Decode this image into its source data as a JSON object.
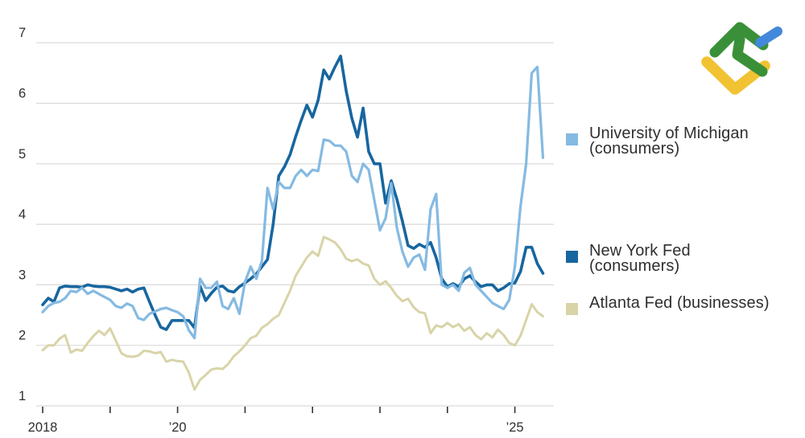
{
  "page": {
    "background": "#ffffff"
  },
  "logo": {
    "name": "litefinance-logo",
    "colors": {
      "green": "#3A9038",
      "blue": "#4289DB",
      "yellow": "#F1C232"
    }
  },
  "legend": {
    "items": [
      {
        "id": "university-of-michigan",
        "line1": "University of Michigan",
        "line2": "(consumers)",
        "color": "#85BAE2"
      },
      {
        "id": "new-york-fed",
        "line1": "New York Fed",
        "line2": "(consumers)",
        "color": "#17669F"
      },
      {
        "id": "atlanta-fed",
        "line1": "Atlanta Fed (businesses)",
        "line2": "",
        "color": "#D8D4A8"
      }
    ]
  },
  "chart_data": {
    "type": "line",
    "x_start": "2018-01",
    "frequency": "monthly",
    "ylim": [
      1,
      7
    ],
    "grid": true,
    "legend_position": "right",
    "colors": {
      "grid": "#D9D9D9",
      "axis_text": "#2F2F2F",
      "tick": "#333333"
    },
    "y_ticks": [
      1,
      2,
      3,
      4,
      5,
      6,
      7
    ],
    "x_ticks": [
      {
        "year": 2018,
        "label": "2018"
      },
      {
        "year": 2019,
        "label": ""
      },
      {
        "year": 2020,
        "label": "’20"
      },
      {
        "year": 2021,
        "label": ""
      },
      {
        "year": 2022,
        "label": ""
      },
      {
        "year": 2023,
        "label": ""
      },
      {
        "year": 2024,
        "label": ""
      },
      {
        "year": 2025,
        "label": "’25"
      }
    ],
    "series": [
      {
        "name": "University of Michigan (consumers)",
        "color": "#85BAE2",
        "values": [
          2.55,
          2.65,
          2.7,
          2.72,
          2.78,
          2.9,
          2.88,
          2.95,
          2.85,
          2.9,
          2.85,
          2.8,
          2.75,
          2.65,
          2.62,
          2.69,
          2.65,
          2.45,
          2.42,
          2.52,
          2.56,
          2.6,
          2.62,
          2.58,
          2.55,
          2.48,
          2.25,
          2.12,
          3.1,
          2.95,
          2.95,
          3.05,
          2.65,
          2.6,
          2.78,
          2.52,
          3.05,
          3.3,
          3.1,
          3.4,
          4.6,
          4.25,
          4.7,
          4.6,
          4.6,
          4.8,
          4.9,
          4.8,
          4.9,
          4.88,
          5.4,
          5.38,
          5.3,
          5.3,
          5.2,
          4.8,
          4.7,
          5.0,
          4.9,
          4.4,
          3.9,
          4.1,
          4.68,
          3.95,
          3.55,
          3.3,
          3.45,
          3.5,
          3.25,
          4.25,
          4.5,
          3.0,
          2.95,
          3.0,
          2.9,
          3.2,
          3.28,
          3.0,
          2.9,
          2.8,
          2.7,
          2.65,
          2.6,
          2.75,
          3.3,
          4.3,
          5.0,
          6.5,
          6.6,
          5.1
        ]
      },
      {
        "name": "New York Fed (consumers)",
        "color": "#17669F",
        "values": [
          2.67,
          2.78,
          2.72,
          2.95,
          2.98,
          2.97,
          2.97,
          2.96,
          3.0,
          2.98,
          2.97,
          2.97,
          2.96,
          2.93,
          2.9,
          2.93,
          2.88,
          2.93,
          2.95,
          2.72,
          2.5,
          2.3,
          2.26,
          2.41,
          2.41,
          2.41,
          2.41,
          2.29,
          2.98,
          2.74,
          2.86,
          2.96,
          2.98,
          2.9,
          2.88,
          2.97,
          3.03,
          3.1,
          3.18,
          3.3,
          3.42,
          4.0,
          4.8,
          4.95,
          5.15,
          5.45,
          5.72,
          5.97,
          5.77,
          6.05,
          6.55,
          6.4,
          6.6,
          6.78,
          6.2,
          5.75,
          5.44,
          5.92,
          5.2,
          5.0,
          5.0,
          4.35,
          4.72,
          4.42,
          4.05,
          3.65,
          3.6,
          3.67,
          3.62,
          3.7,
          3.45,
          3.1,
          2.97,
          3.02,
          2.97,
          3.1,
          3.15,
          3.05,
          2.97,
          3.0,
          3.0,
          2.9,
          2.95,
          3.02,
          3.03,
          3.22,
          3.62,
          3.62,
          3.35,
          3.19
        ]
      },
      {
        "name": "Atlanta Fed (businesses)",
        "color": "#D8D4A8",
        "values": [
          1.92,
          2.0,
          2.0,
          2.11,
          2.17,
          1.88,
          1.93,
          1.91,
          2.04,
          2.15,
          2.24,
          2.17,
          2.28,
          2.08,
          1.87,
          1.82,
          1.81,
          1.83,
          1.91,
          1.9,
          1.87,
          1.89,
          1.73,
          1.76,
          1.74,
          1.73,
          1.55,
          1.27,
          1.43,
          1.51,
          1.6,
          1.62,
          1.61,
          1.69,
          1.82,
          1.9,
          2.0,
          2.12,
          2.16,
          2.29,
          2.35,
          2.44,
          2.5,
          2.7,
          2.9,
          3.15,
          3.3,
          3.45,
          3.55,
          3.48,
          3.79,
          3.75,
          3.7,
          3.59,
          3.43,
          3.39,
          3.42,
          3.35,
          3.32,
          3.1,
          3.0,
          3.06,
          2.95,
          2.82,
          2.73,
          2.77,
          2.63,
          2.55,
          2.53,
          2.2,
          2.33,
          2.3,
          2.37,
          2.3,
          2.35,
          2.24,
          2.3,
          2.17,
          2.1,
          2.2,
          2.13,
          2.26,
          2.17,
          2.04,
          2.0,
          2.16,
          2.42,
          2.68,
          2.55,
          2.48
        ]
      }
    ]
  }
}
